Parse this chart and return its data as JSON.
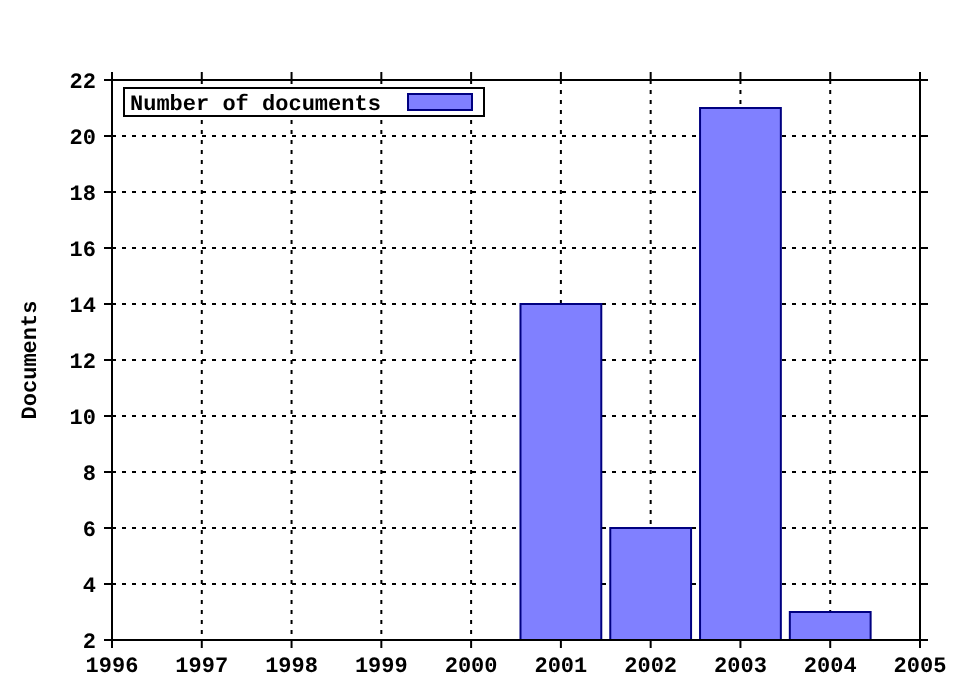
{
  "chart_data": {
    "type": "bar",
    "ylabel": "Documents",
    "x": [
      2001,
      2002,
      2003,
      2004
    ],
    "series": [
      {
        "name": "Number of documents",
        "color": "#8080ff",
        "values": [
          14,
          6,
          21,
          3
        ]
      }
    ],
    "xlim": [
      1996,
      2005
    ],
    "xticks": [
      1996,
      1997,
      1998,
      1999,
      2000,
      2001,
      2002,
      2003,
      2004,
      2005
    ],
    "ylim": [
      2,
      22
    ],
    "yticks": [
      2,
      4,
      6,
      8,
      10,
      12,
      14,
      16,
      18,
      20,
      22
    ],
    "grid": true,
    "legend": "top left"
  }
}
